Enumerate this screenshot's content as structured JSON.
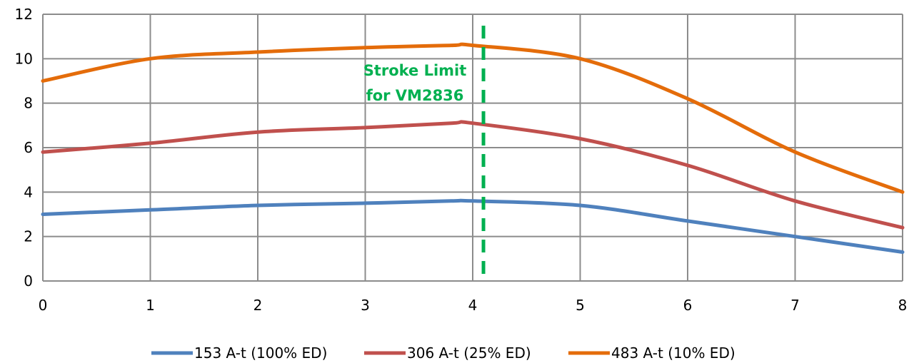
{
  "chart_data": {
    "type": "line",
    "title": "",
    "xlabel": "",
    "ylabel": "",
    "xlim": [
      0,
      8
    ],
    "ylim": [
      0,
      12
    ],
    "x_ticks": [
      0,
      1,
      2,
      3,
      4,
      5,
      6,
      7,
      8
    ],
    "y_ticks": [
      0,
      2,
      4,
      6,
      8,
      10,
      12
    ],
    "grid": true,
    "legend_position": "bottom",
    "series": [
      {
        "name": "153 A-t (100% ED)",
        "color": "#4F81BD",
        "x": [
          0,
          1,
          2,
          3,
          3.8,
          4,
          5,
          6,
          7,
          8
        ],
        "y": [
          3.0,
          3.2,
          3.4,
          3.5,
          3.6,
          3.6,
          3.4,
          2.7,
          2.0,
          1.3
        ]
      },
      {
        "name": "306 A-t (25% ED)",
        "color": "#C0504D",
        "x": [
          0,
          1,
          2,
          3,
          3.8,
          4,
          5,
          6,
          7,
          8
        ],
        "y": [
          5.8,
          6.2,
          6.7,
          6.9,
          7.1,
          7.1,
          6.4,
          5.2,
          3.6,
          2.4
        ]
      },
      {
        "name": "483 A-t (10% ED)",
        "color": "#E46C0A",
        "x": [
          0,
          1,
          2,
          3,
          3.8,
          4,
          5,
          6,
          7,
          8
        ],
        "y": [
          9.0,
          10.0,
          10.3,
          10.5,
          10.6,
          10.6,
          10.0,
          8.2,
          5.8,
          4.0
        ]
      }
    ],
    "annotations": [
      {
        "type": "vline",
        "x": 4.1,
        "color": "#00B050",
        "style": "dashed",
        "lines": [
          "Stroke Limit",
          "for VM2836"
        ]
      }
    ]
  }
}
